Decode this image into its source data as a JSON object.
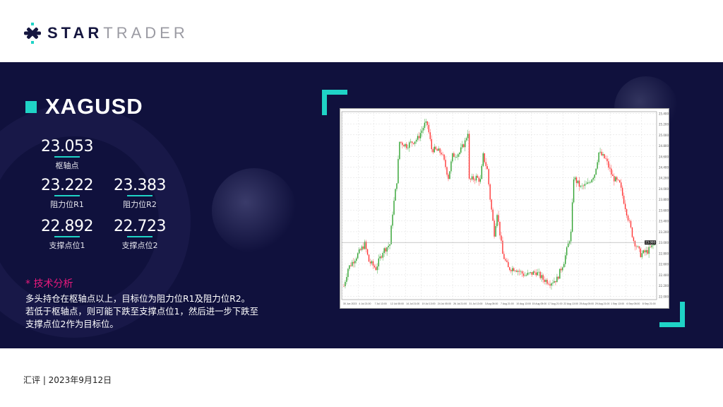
{
  "logo": {
    "bold": "STAR",
    "light": "TRADER"
  },
  "symbol": "XAGUSD",
  "levels": {
    "pivot": {
      "value": "23.053",
      "label": "枢轴点"
    },
    "r1": {
      "value": "23.222",
      "label": "阻力位R1"
    },
    "r2": {
      "value": "23.383",
      "label": "阻力位R2"
    },
    "s1": {
      "value": "22.892",
      "label": "支撑点位1"
    },
    "s2": {
      "value": "22.723",
      "label": "支撑点位2"
    }
  },
  "analysis": {
    "title": "* 技术分析",
    "lines": [
      "多头持仓在枢轴点以上，目标位为阻力位R1及阻力位R2。",
      "若低于枢轴点，则可能下跌至支撑点位1，然后进一步下跌至",
      "支撑点位2作为目标位。"
    ]
  },
  "footer": "汇评 | 2023年9月12日",
  "colors": {
    "navy": "#10113d",
    "accent": "#1fd3c6",
    "pink": "#e8197c",
    "bull": "#2ca02c",
    "bear": "#ff3333"
  },
  "chart_data": {
    "type": "candlestick",
    "ylim": [
      21.94,
      25.43
    ],
    "grid": true,
    "current_price": 23.0,
    "y_ticks": [
      22.0,
      22.2,
      22.4,
      22.6,
      22.8,
      23.0,
      23.2,
      23.4,
      23.6,
      23.8,
      24.0,
      24.2,
      24.4,
      24.6,
      24.8,
      25.0,
      25.2,
      25.4
    ],
    "x_tick_labels": [
      "30 Jun 2023",
      "4 Jul 21:00",
      "7 Jul 13:00",
      "12 Jul 05:00",
      "14 Jul 21:00",
      "19 Jul 13:00",
      "24 Jul 05:00",
      "26 Jul 21:00",
      "31 Jul 13:00",
      "3 Aug 05:00",
      "7 Aug 21:00",
      "10 Aug 13:00",
      "15 Aug 05:00",
      "17 Aug 21:00",
      "22 Aug 13:00",
      "25 Aug 05:00",
      "29 Aug 21:00",
      "1 Sep 13:00",
      "6 Sep 05:00",
      "8 Sep 21:00"
    ],
    "close_path": [
      [
        0,
        22.19
      ],
      [
        3,
        22.52
      ],
      [
        10,
        22.78
      ],
      [
        15,
        22.97
      ],
      [
        18,
        22.65
      ],
      [
        23,
        22.52
      ],
      [
        28,
        22.84
      ],
      [
        33,
        22.97
      ],
      [
        35,
        23.56
      ],
      [
        38,
        24.15
      ],
      [
        40,
        24.87
      ],
      [
        45,
        24.8
      ],
      [
        53,
        24.93
      ],
      [
        58,
        25.19
      ],
      [
        60,
        25.19
      ],
      [
        63,
        24.74
      ],
      [
        70,
        24.67
      ],
      [
        73,
        24.41
      ],
      [
        75,
        24.21
      ],
      [
        78,
        24.61
      ],
      [
        83,
        24.67
      ],
      [
        87,
        24.87
      ],
      [
        89,
        25.06
      ],
      [
        90,
        24.15
      ],
      [
        95,
        24.21
      ],
      [
        98,
        24.15
      ],
      [
        100,
        24.61
      ],
      [
        103,
        24.35
      ],
      [
        105,
        23.82
      ],
      [
        108,
        23.17
      ],
      [
        110,
        23.56
      ],
      [
        114,
        22.78
      ],
      [
        118,
        22.52
      ],
      [
        123,
        22.52
      ],
      [
        130,
        22.39
      ],
      [
        138,
        22.45
      ],
      [
        143,
        22.32
      ],
      [
        148,
        22.26
      ],
      [
        153,
        22.32
      ],
      [
        158,
        22.65
      ],
      [
        163,
        23.17
      ],
      [
        165,
        24.21
      ],
      [
        170,
        24.02
      ],
      [
        175,
        24.08
      ],
      [
        180,
        24.28
      ],
      [
        183,
        24.67
      ],
      [
        188,
        24.54
      ],
      [
        193,
        24.21
      ],
      [
        198,
        24.08
      ],
      [
        203,
        23.56
      ],
      [
        208,
        23.04
      ],
      [
        213,
        22.78
      ],
      [
        218,
        22.84
      ],
      [
        223,
        22.97
      ]
    ]
  }
}
